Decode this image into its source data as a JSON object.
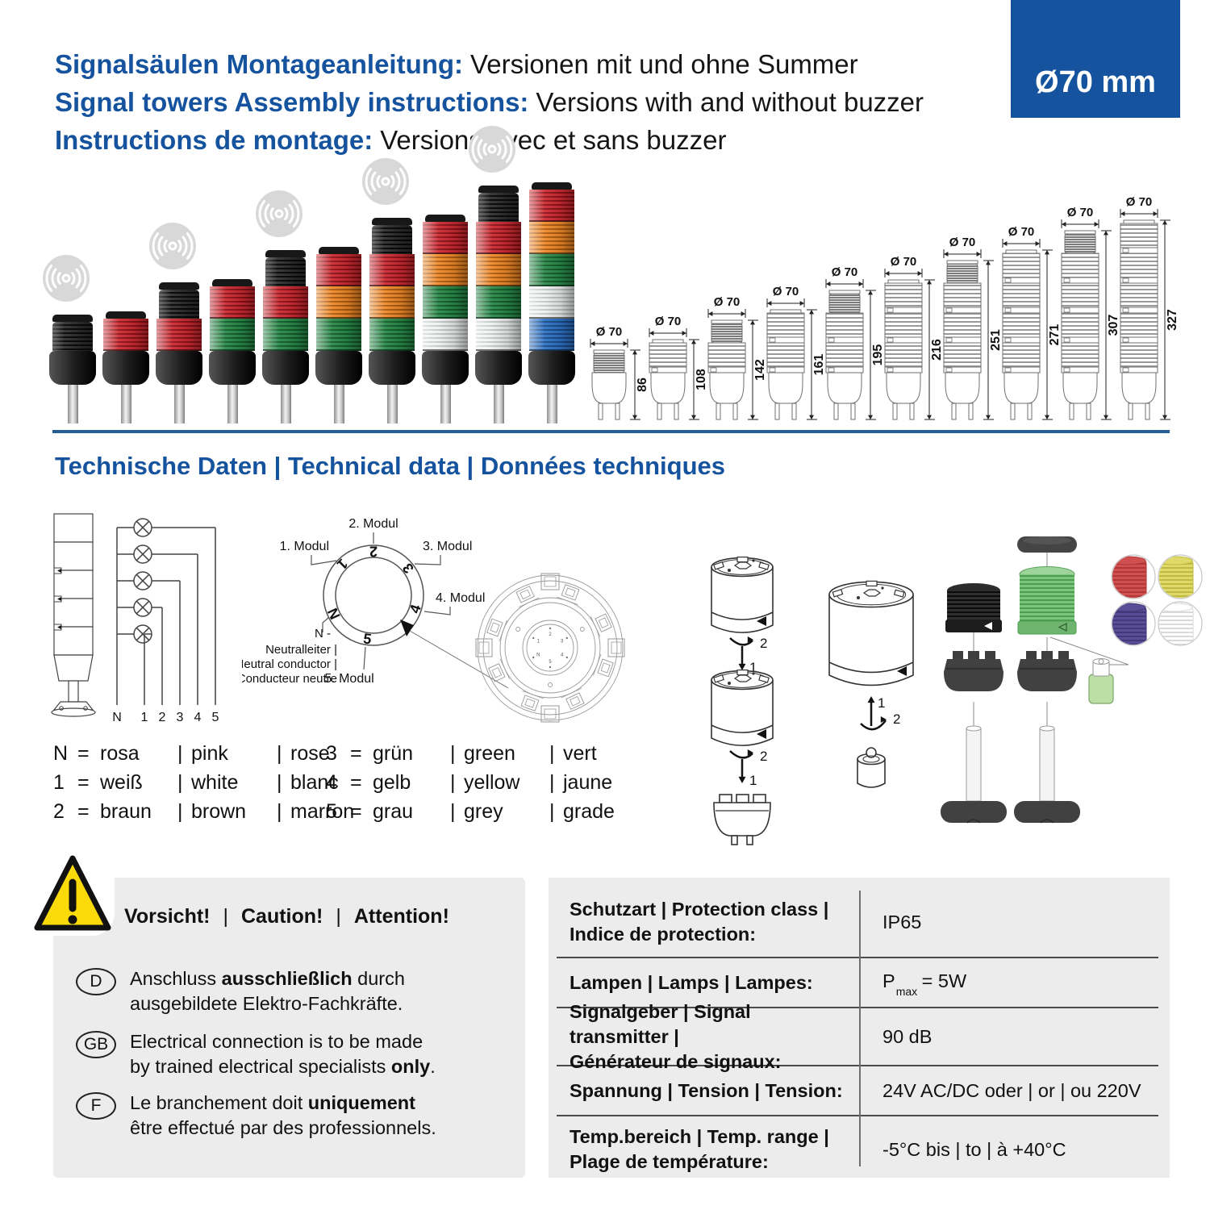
{
  "accent": "#15539e",
  "header": {
    "lines": [
      {
        "label": "Signalsäulen Montageanleitung:",
        "text": "Versionen mit und ohne Summer"
      },
      {
        "label": "Signal towers Assembly instructions:",
        "text": "Versions with and without buzzer"
      },
      {
        "label": "Instructions de montage:",
        "text": "Versions avec et sans buzzer"
      }
    ],
    "badge": "Ø70 mm"
  },
  "section_title": "Technische Daten | Technical data | Données techniques",
  "towers_photo": {
    "colors": {
      "red": [
        "#cf2b33",
        "#8c1218"
      ],
      "orange": [
        "#ef8b2a",
        "#b05a10"
      ],
      "green": [
        "#2a8c4a",
        "#145c2c"
      ],
      "clear": [
        "#eef1f0",
        "#c0c7c5"
      ],
      "blue": [
        "#2f74c8",
        "#1a4b88"
      ]
    },
    "items": [
      {
        "modules": [],
        "buzzer": true
      },
      {
        "modules": [
          "red"
        ],
        "buzzer": false
      },
      {
        "modules": [
          "red"
        ],
        "buzzer": true
      },
      {
        "modules": [
          "red",
          "green"
        ],
        "buzzer": false
      },
      {
        "modules": [
          "red",
          "green"
        ],
        "buzzer": true
      },
      {
        "modules": [
          "red",
          "orange",
          "green"
        ],
        "buzzer": false
      },
      {
        "modules": [
          "red",
          "orange",
          "green"
        ],
        "buzzer": true
      },
      {
        "modules": [
          "red",
          "orange",
          "green",
          "clear"
        ],
        "buzzer": false
      },
      {
        "modules": [
          "red",
          "orange",
          "green",
          "clear"
        ],
        "buzzer": true
      },
      {
        "modules": [
          "red",
          "orange",
          "green",
          "clear",
          "blue"
        ],
        "buzzer": false
      }
    ]
  },
  "dimension_drawings": {
    "diameter_label": "Ø 70",
    "items": [
      {
        "height": "86",
        "modules": 0,
        "buzzer": true
      },
      {
        "height": "108",
        "modules": 1,
        "buzzer": false
      },
      {
        "height": "142",
        "modules": 1,
        "buzzer": true
      },
      {
        "height": "161",
        "modules": 2,
        "buzzer": false
      },
      {
        "height": "195",
        "modules": 2,
        "buzzer": true
      },
      {
        "height": "216",
        "modules": 3,
        "buzzer": false
      },
      {
        "height": "251",
        "modules": 3,
        "buzzer": true
      },
      {
        "height": "271",
        "modules": 4,
        "buzzer": false
      },
      {
        "height": "307",
        "modules": 4,
        "buzzer": true
      },
      {
        "height": "327",
        "modules": 5,
        "buzzer": false
      }
    ]
  },
  "wiring": {
    "terminals": [
      "N",
      "1",
      "2",
      "3",
      "4",
      "5"
    ],
    "lamp_count": 5
  },
  "ring": {
    "dial": [
      "1",
      "2",
      "3",
      "4",
      "5",
      "N"
    ],
    "module_labels": [
      "1. Modul",
      "2. Modul",
      "3. Modul",
      "4. Modul",
      "5. Modul"
    ],
    "neutral_label": [
      "N -",
      "Neutralleiter |",
      "Neutral conductor |",
      "Conducteur neutre"
    ]
  },
  "assembly": {
    "push_step": "1",
    "turn_step": "2"
  },
  "exploded": {
    "lens_colors": [
      "#d05050",
      "#ded968",
      "#5a4d97",
      "#ffffff"
    ],
    "lens_dark": [
      "#b23737",
      "#c0ba42",
      "#433878",
      "#d9d9d9"
    ]
  },
  "legend": {
    "eq": "=",
    "sep": "|",
    "columns": [
      [
        {
          "key": "N",
          "de": "rosa",
          "en": "pink",
          "fr": "rose"
        },
        {
          "key": "1",
          "de": "weiß",
          "en": "white",
          "fr": "blanc"
        },
        {
          "key": "2",
          "de": "braun",
          "en": "brown",
          "fr": "marron"
        }
      ],
      [
        {
          "key": "3",
          "de": "grün",
          "en": "green",
          "fr": "vert"
        },
        {
          "key": "4",
          "de": "gelb",
          "en": "yellow",
          "fr": "jaune"
        },
        {
          "key": "5",
          "de": "grau",
          "en": "grey",
          "fr": "grade"
        }
      ]
    ]
  },
  "warning": {
    "title_parts": [
      "Vorsicht!",
      "Caution!",
      "Attention!"
    ],
    "separator": "|",
    "items": [
      {
        "badge": "D",
        "lines": [
          [
            {
              "t": "Anschluss "
            },
            {
              "t": "ausschließlich",
              "b": true
            },
            {
              "t": " durch"
            }
          ],
          [
            {
              "t": "ausgebildete Elektro-Fachkräfte."
            }
          ]
        ]
      },
      {
        "badge": "GB",
        "lines": [
          [
            {
              "t": "Electrical connection is to be made"
            }
          ],
          [
            {
              "t": "by trained electrical specialists "
            },
            {
              "t": "only",
              "b": true
            },
            {
              "t": "."
            }
          ]
        ]
      },
      {
        "badge": "F",
        "lines": [
          [
            {
              "t": "Le branchement doit "
            },
            {
              "t": "uniquement",
              "b": true
            }
          ],
          [
            {
              "t": "être effectué par des professionnels."
            }
          ]
        ]
      }
    ]
  },
  "spec_table": {
    "rows": [
      {
        "label": [
          "Schutzart | Protection class |",
          "Indice de protection:"
        ],
        "value": [
          {
            "t": "IP65"
          }
        ]
      },
      {
        "label": [
          "Lampen | Lamps | Lampes:"
        ],
        "value": [
          {
            "t": "P"
          },
          {
            "t": "max",
            "sub": true
          },
          {
            "t": " = 5W"
          }
        ]
      },
      {
        "label": [
          "Signalgeber | Signal transmitter |",
          "Générateur de signaux:"
        ],
        "value": [
          {
            "t": "90 dB"
          }
        ]
      },
      {
        "label": [
          "Spannung | Tension | Tension:"
        ],
        "value": [
          {
            "t": "24V AC/DC oder | or | ou 220V"
          }
        ]
      },
      {
        "label": [
          "Temp.bereich | Temp. range |",
          "Plage de température:"
        ],
        "value": [
          {
            "t": "-5°C bis | to | à  +40°C"
          }
        ]
      }
    ]
  }
}
